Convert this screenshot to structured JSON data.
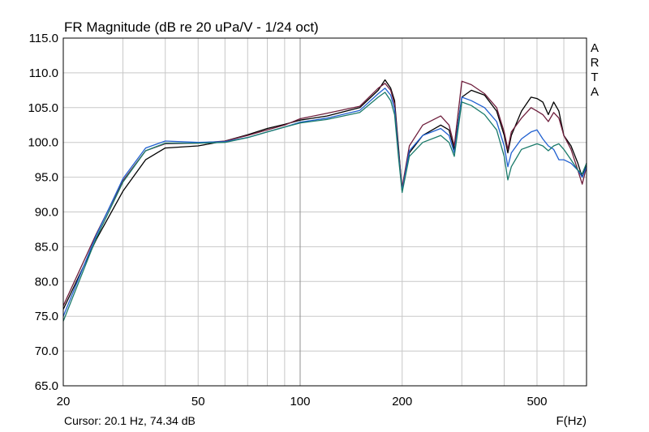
{
  "chart_data": {
    "type": "line",
    "title": "FR Magnitude (dB re 20 uPa/V - 1/24 oct)",
    "xlabel": "F(Hz)",
    "ylabel": "",
    "xscale": "log",
    "xlim": [
      20,
      700
    ],
    "ylim": [
      65,
      115
    ],
    "grid": true,
    "x_tick_labels": [
      "20",
      "50",
      "100",
      "200",
      "500"
    ],
    "x_ticks": [
      20,
      50,
      100,
      200,
      500
    ],
    "y_ticks": [
      65,
      70,
      75,
      80,
      85,
      90,
      95,
      100,
      105,
      110,
      115
    ],
    "y_tick_labels": [
      "65.0",
      "70.0",
      "75.0",
      "80.0",
      "85.0",
      "90.0",
      "95.0",
      "100.0",
      "105.0",
      "110.0",
      "115.0"
    ],
    "side_label": [
      "A",
      "R",
      "T",
      "A"
    ],
    "cursor_text": "Cursor: 20.1 Hz, 74.34 dB",
    "series": [
      {
        "color": "#000000",
        "x": [
          20,
          25,
          30,
          35,
          40,
          50,
          60,
          70,
          80,
          90,
          100,
          120,
          150,
          170,
          178,
          185,
          190,
          195,
          200,
          210,
          230,
          260,
          275,
          285,
          300,
          320,
          350,
          380,
          400,
          410,
          420,
          450,
          480,
          500,
          520,
          540,
          560,
          580,
          600,
          630,
          660,
          680,
          700
        ],
        "y": [
          76.0,
          86.0,
          93.0,
          97.5,
          99.2,
          99.5,
          100.2,
          101.1,
          102.0,
          102.6,
          103.2,
          103.8,
          105.0,
          107.5,
          109.0,
          107.8,
          106.0,
          99.5,
          93.0,
          98.5,
          101.0,
          102.5,
          101.8,
          99.0,
          106.5,
          107.5,
          106.8,
          104.5,
          101.0,
          98.5,
          101.0,
          104.5,
          106.5,
          106.3,
          105.8,
          104.0,
          105.8,
          104.5,
          101.0,
          99.5,
          97.0,
          95.0,
          97.0
        ]
      },
      {
        "color": "#6e1e3c",
        "x": [
          20,
          25,
          30,
          35,
          40,
          50,
          60,
          70,
          80,
          90,
          100,
          120,
          150,
          170,
          178,
          185,
          190,
          195,
          200,
          210,
          230,
          260,
          275,
          285,
          300,
          320,
          350,
          380,
          400,
          410,
          420,
          450,
          480,
          500,
          520,
          540,
          560,
          580,
          600,
          630,
          660,
          680,
          700
        ],
        "y": [
          76.5,
          86.8,
          94.5,
          98.8,
          99.8,
          99.9,
          100.2,
          101.0,
          101.8,
          102.5,
          103.4,
          104.2,
          105.2,
          107.8,
          108.5,
          107.5,
          105.5,
          99.0,
          93.5,
          99.5,
          102.5,
          103.8,
          102.5,
          99.5,
          108.8,
          108.3,
          107.0,
          105.0,
          101.5,
          99.0,
          101.5,
          103.5,
          105.0,
          104.5,
          104.0,
          103.0,
          104.3,
          103.5,
          101.0,
          99.0,
          96.0,
          94.0,
          96.5
        ]
      },
      {
        "color": "#2060d0",
        "x": [
          20,
          25,
          30,
          35,
          40,
          50,
          60,
          70,
          80,
          90,
          100,
          120,
          150,
          170,
          178,
          185,
          190,
          195,
          200,
          210,
          230,
          260,
          275,
          285,
          300,
          320,
          350,
          380,
          400,
          410,
          420,
          450,
          480,
          500,
          520,
          540,
          560,
          580,
          600,
          630,
          660,
          680,
          700
        ],
        "y": [
          75.0,
          86.6,
          94.8,
          99.2,
          100.2,
          100.0,
          100.1,
          100.7,
          101.5,
          102.2,
          102.9,
          103.5,
          104.6,
          107.0,
          107.8,
          106.8,
          104.8,
          98.5,
          93.0,
          98.8,
          101.0,
          102.0,
          101.0,
          98.5,
          106.5,
          106.0,
          105.0,
          103.0,
          99.5,
          96.5,
          98.5,
          100.5,
          101.5,
          101.8,
          100.5,
          99.5,
          99.0,
          97.5,
          97.5,
          97.0,
          96.0,
          95.0,
          96.5
        ]
      },
      {
        "color": "#1a7a6a",
        "x": [
          20,
          25,
          30,
          35,
          40,
          50,
          60,
          70,
          80,
          90,
          100,
          120,
          150,
          170,
          178,
          185,
          190,
          195,
          200,
          210,
          230,
          260,
          275,
          285,
          300,
          320,
          350,
          380,
          400,
          410,
          420,
          450,
          480,
          500,
          520,
          540,
          560,
          580,
          600,
          630,
          660,
          680,
          700
        ],
        "y": [
          74.3,
          86.2,
          94.3,
          98.8,
          99.9,
          99.9,
          100.0,
          100.7,
          101.5,
          102.2,
          102.8,
          103.3,
          104.3,
          106.5,
          107.2,
          106.0,
          104.0,
          98.0,
          92.8,
          98.0,
          100.0,
          101.0,
          100.0,
          98.0,
          105.8,
          105.3,
          104.0,
          101.8,
          98.0,
          94.6,
          96.5,
          99.0,
          99.5,
          99.8,
          99.5,
          98.8,
          99.5,
          99.8,
          99.0,
          97.5,
          96.0,
          95.5,
          97.0
        ]
      }
    ]
  }
}
